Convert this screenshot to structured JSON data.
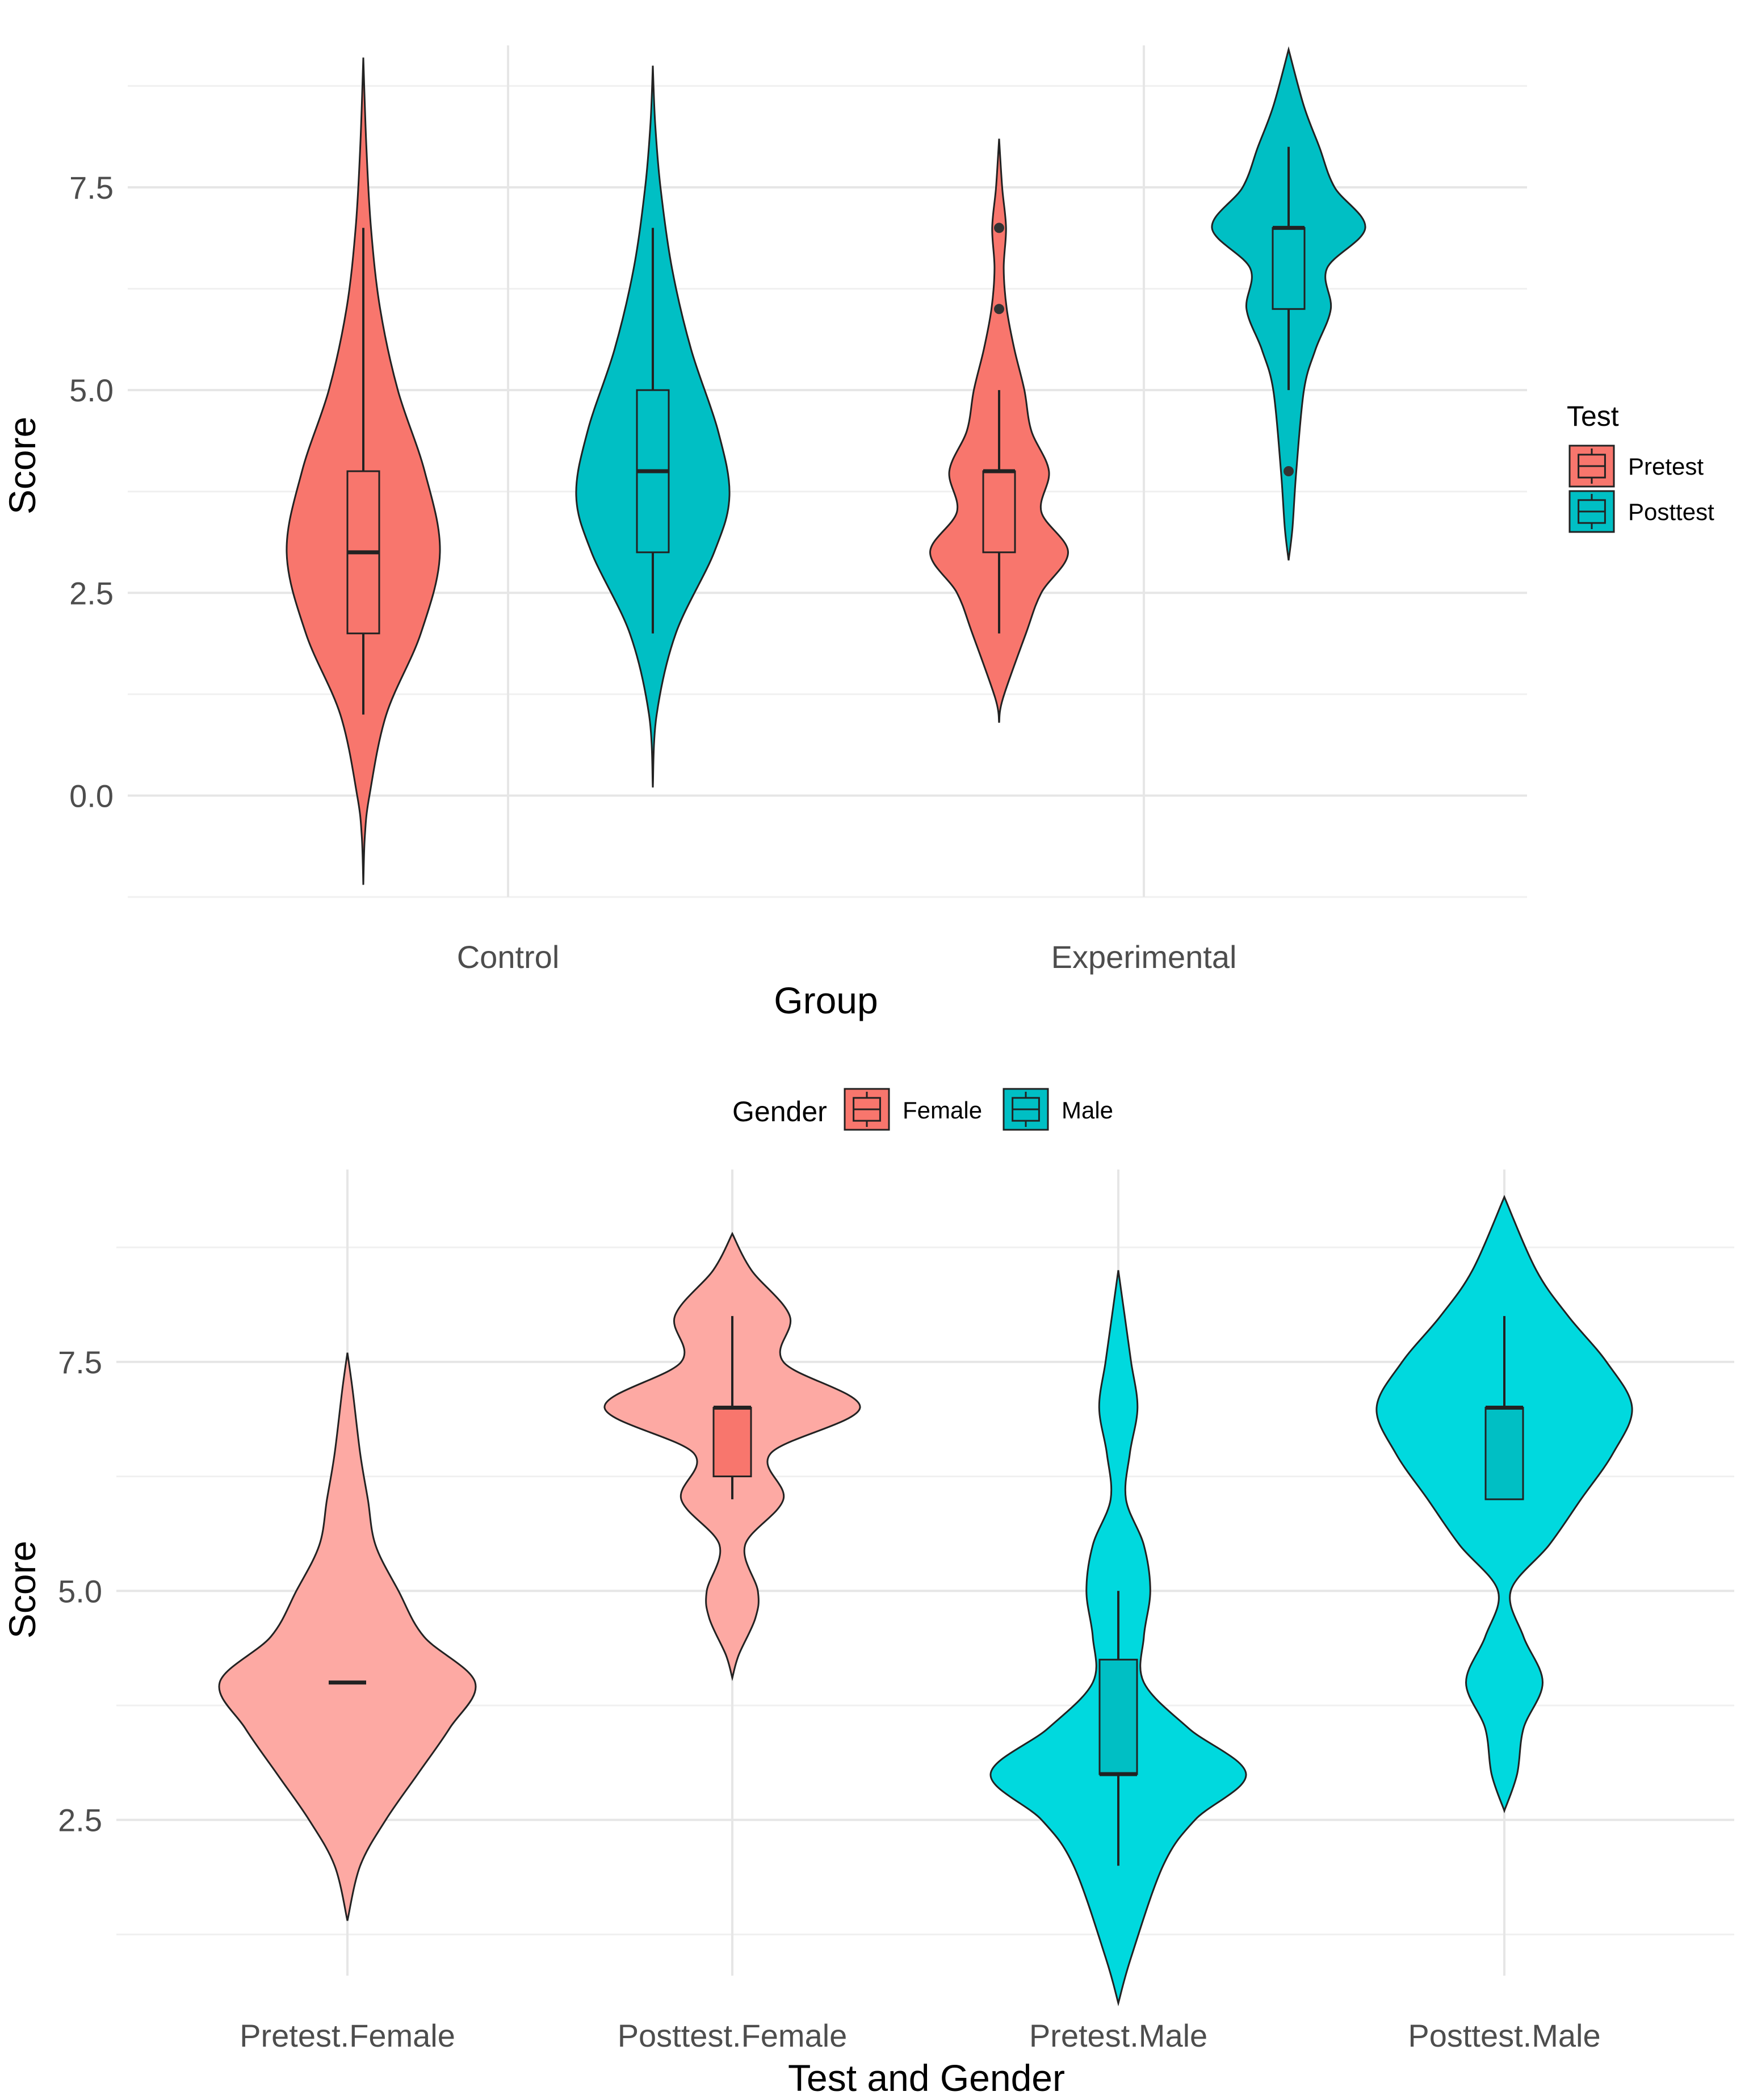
{
  "chart_data": [
    {
      "type": "violin",
      "xlabel": "Group",
      "ylabel": "Score",
      "ylim": [
        -1.25,
        9.25
      ],
      "yticks": [
        0.0,
        2.5,
        5.0,
        7.5
      ],
      "ytick_labels": [
        "0.0",
        "2.5",
        "5.0",
        "7.5"
      ],
      "grid": true,
      "categories": [
        "Control",
        "Experimental"
      ],
      "legend": {
        "title": "Test",
        "placement": "right",
        "entries": [
          "Pretest",
          "Posttest"
        ]
      },
      "series": [
        {
          "name": "Pretest",
          "color": "#F8766D",
          "boxes": [
            {
              "category": "Control",
              "min": 1,
              "q1": 2,
              "median": 3,
              "q3": 4,
              "max": 7,
              "outliers": [],
              "violin_range": [
                -1.1,
                9.1
              ],
              "density": [
                [
                  -1.1,
                  0.0
                ],
                [
                  -0.5,
                  0.02
                ],
                [
                  0.0,
                  0.08
                ],
                [
                  1.0,
                  0.3
                ],
                [
                  2.0,
                  0.75
                ],
                [
                  3.0,
                  1.0
                ],
                [
                  4.0,
                  0.8
                ],
                [
                  5.0,
                  0.45
                ],
                [
                  6.0,
                  0.22
                ],
                [
                  7.0,
                  0.1
                ],
                [
                  8.0,
                  0.04
                ],
                [
                  9.1,
                  0.0
                ]
              ]
            },
            {
              "category": "Experimental",
              "min": 2,
              "q1": 3,
              "median": 4,
              "q3": 4,
              "max": 5,
              "outliers": [
                6,
                7
              ],
              "violin_range": [
                0.9,
                8.1
              ],
              "density": [
                [
                  0.9,
                  0.0
                ],
                [
                  1.2,
                  0.05
                ],
                [
                  2.0,
                  0.35
                ],
                [
                  2.5,
                  0.55
                ],
                [
                  3.0,
                  0.9
                ],
                [
                  3.5,
                  0.55
                ],
                [
                  4.0,
                  0.65
                ],
                [
                  4.5,
                  0.42
                ],
                [
                  5.0,
                  0.33
                ],
                [
                  5.5,
                  0.2
                ],
                [
                  6.0,
                  0.1
                ],
                [
                  6.5,
                  0.06
                ],
                [
                  7.0,
                  0.09
                ],
                [
                  7.5,
                  0.04
                ],
                [
                  8.1,
                  0.0
                ]
              ]
            }
          ]
        },
        {
          "name": "Posttest",
          "color": "#00BFC4",
          "boxes": [
            {
              "category": "Control",
              "min": 2,
              "q1": 3,
              "median": 4,
              "q3": 5,
              "max": 7,
              "outliers": [],
              "violin_range": [
                0.1,
                9.0
              ],
              "density": [
                [
                  0.1,
                  0.0
                ],
                [
                  1.0,
                  0.05
                ],
                [
                  2.0,
                  0.3
                ],
                [
                  3.0,
                  0.8
                ],
                [
                  3.7,
                  1.0
                ],
                [
                  4.5,
                  0.85
                ],
                [
                  5.5,
                  0.5
                ],
                [
                  6.5,
                  0.25
                ],
                [
                  7.5,
                  0.1
                ],
                [
                  8.3,
                  0.03
                ],
                [
                  9.0,
                  0.0
                ]
              ]
            },
            {
              "category": "Experimental",
              "min": 5,
              "q1": 6,
              "median": 7,
              "q3": 7,
              "max": 8,
              "outliers": [
                4
              ],
              "violin_range": [
                2.9,
                9.2
              ],
              "density": [
                [
                  2.9,
                  0.0
                ],
                [
                  3.3,
                  0.05
                ],
                [
                  4.0,
                  0.1
                ],
                [
                  5.0,
                  0.2
                ],
                [
                  5.5,
                  0.35
                ],
                [
                  6.0,
                  0.55
                ],
                [
                  6.5,
                  0.5
                ],
                [
                  7.0,
                  1.0
                ],
                [
                  7.5,
                  0.6
                ],
                [
                  8.0,
                  0.4
                ],
                [
                  8.5,
                  0.2
                ],
                [
                  9.2,
                  0.0
                ]
              ]
            }
          ]
        }
      ]
    },
    {
      "type": "violin",
      "xlabel": "Test and Gender",
      "ylabel": "Score",
      "ylim": [
        0.8,
        9.6
      ],
      "yticks": [
        2.5,
        5.0,
        7.5
      ],
      "ytick_labels": [
        "2.5",
        "5.0",
        "7.5"
      ],
      "grid": true,
      "categories": [
        "Pretest.Female",
        "Posttest.Female",
        "Pretest.Male",
        "Posttest.Male"
      ],
      "legend": {
        "title": "Gender",
        "placement": "top",
        "entries": [
          "Female",
          "Male"
        ]
      },
      "series": [
        {
          "name": "Female",
          "color": "#F8766D",
          "violin_color": "#FDA9A3",
          "boxes": [
            {
              "category": "Pretest.Female",
              "min": 4,
              "q1": 4,
              "median": 4,
              "q3": 4,
              "max": 4,
              "outliers": [],
              "violin_range": [
                1.4,
                7.6
              ],
              "density": [
                [
                  1.4,
                  0.0
                ],
                [
                  2.0,
                  0.1
                ],
                [
                  2.5,
                  0.3
                ],
                [
                  3.0,
                  0.55
                ],
                [
                  3.5,
                  0.8
                ],
                [
                  4.0,
                  1.0
                ],
                [
                  4.5,
                  0.6
                ],
                [
                  5.0,
                  0.4
                ],
                [
                  5.5,
                  0.22
                ],
                [
                  6.0,
                  0.16
                ],
                [
                  6.5,
                  0.1
                ],
                [
                  7.2,
                  0.04
                ],
                [
                  7.6,
                  0.0
                ]
              ]
            },
            {
              "category": "Posttest.Female",
              "min": 6,
              "q1": 6.25,
              "median": 7,
              "q3": 7,
              "max": 8,
              "outliers": [],
              "violin_range": [
                4.05,
                8.9
              ],
              "density": [
                [
                  4.05,
                  0.0
                ],
                [
                  4.3,
                  0.05
                ],
                [
                  4.7,
                  0.18
                ],
                [
                  5.0,
                  0.2
                ],
                [
                  5.5,
                  0.1
                ],
                [
                  6.0,
                  0.4
                ],
                [
                  6.5,
                  0.3
                ],
                [
                  7.0,
                  1.0
                ],
                [
                  7.5,
                  0.4
                ],
                [
                  8.0,
                  0.45
                ],
                [
                  8.5,
                  0.15
                ],
                [
                  8.9,
                  0.0
                ]
              ]
            }
          ]
        },
        {
          "name": "Male",
          "color": "#00BFC4",
          "violin_color": "#00D9DE",
          "boxes": [
            {
              "category": "Pretest.Male",
              "min": 2,
              "q1": 3,
              "median": 3,
              "q3": 4.25,
              "max": 5,
              "outliers": [],
              "violin_range": [
                0.5,
                8.5
              ],
              "density": [
                [
                  0.5,
                  0.0
                ],
                [
                  1.0,
                  0.1
                ],
                [
                  2.0,
                  0.35
                ],
                [
                  2.5,
                  0.6
                ],
                [
                  3.0,
                  1.0
                ],
                [
                  3.5,
                  0.55
                ],
                [
                  4.0,
                  0.2
                ],
                [
                  4.5,
                  0.2
                ],
                [
                  5.0,
                  0.25
                ],
                [
                  5.5,
                  0.2
                ],
                [
                  6.0,
                  0.06
                ],
                [
                  6.5,
                  0.09
                ],
                [
                  7.0,
                  0.15
                ],
                [
                  7.5,
                  0.1
                ],
                [
                  8.0,
                  0.05
                ],
                [
                  8.5,
                  0.0
                ]
              ]
            },
            {
              "category": "Posttest.Male",
              "min": 6,
              "q1": 6,
              "median": 7,
              "q3": 7,
              "max": 8,
              "outliers": [],
              "violin_range": [
                2.6,
                9.3
              ],
              "density": [
                [
                  2.6,
                  0.0
                ],
                [
                  3.0,
                  0.1
                ],
                [
                  3.5,
                  0.15
                ],
                [
                  4.0,
                  0.3
                ],
                [
                  4.5,
                  0.15
                ],
                [
                  5.0,
                  0.05
                ],
                [
                  5.5,
                  0.35
                ],
                [
                  6.0,
                  0.6
                ],
                [
                  6.5,
                  0.85
                ],
                [
                  7.0,
                  1.0
                ],
                [
                  7.5,
                  0.8
                ],
                [
                  8.0,
                  0.5
                ],
                [
                  8.5,
                  0.25
                ],
                [
                  9.3,
                  0.0
                ]
              ]
            }
          ]
        }
      ]
    }
  ]
}
